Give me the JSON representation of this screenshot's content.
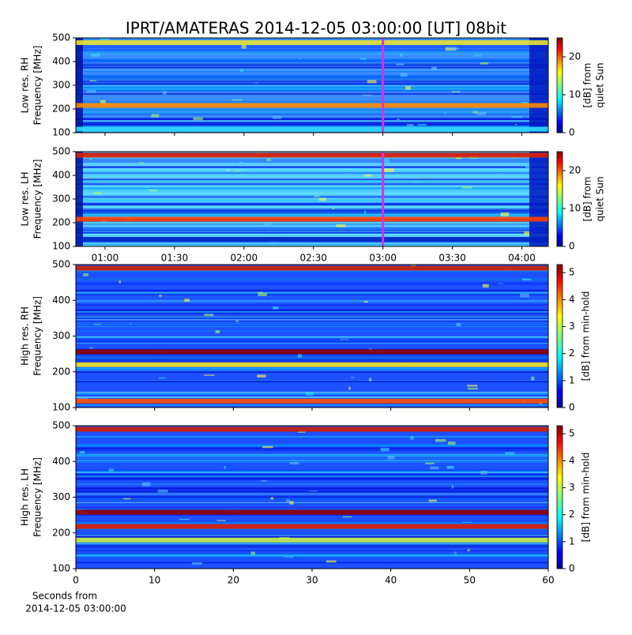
{
  "title": "IPRT/AMATERAS 2014-12-05 03:00:00 [UT]   08bit",
  "chart_data": [
    {
      "type": "spectrogram",
      "ylabel": [
        "Low res. RH",
        "Frequency [MHz]"
      ],
      "xlim": [
        0.79,
        4.19
      ],
      "ylim": [
        100,
        500
      ],
      "yticks": [
        100,
        200,
        300,
        400,
        500
      ],
      "base_color": "#3a8cff",
      "marker_x": 3.0,
      "marker_color": "#e030e0",
      "bands": [
        {
          "freq": 480,
          "color": "#e8e030"
        },
        {
          "freq": 215,
          "color": "#ff8a00"
        },
        {
          "freq": 115,
          "color": "#30e0ff"
        }
      ],
      "colorbar": {
        "label": [
          "[dB] from",
          "quiet Sun"
        ],
        "clim": [
          0,
          25
        ],
        "ticks": [
          0,
          10,
          20
        ]
      }
    },
    {
      "type": "spectrogram",
      "ylabel": [
        "Low res. LH",
        "Frequency [MHz]"
      ],
      "xlim": [
        0.79,
        4.19
      ],
      "ylim": [
        100,
        500
      ],
      "yticks": [
        100,
        200,
        300,
        400,
        500
      ],
      "xticks": [
        {
          "value": 1.0,
          "label": "01:00"
        },
        {
          "value": 1.5,
          "label": "01:30"
        },
        {
          "value": 2.0,
          "label": "02:00"
        },
        {
          "value": 2.5,
          "label": "02:30"
        },
        {
          "value": 3.0,
          "label": "03:00"
        },
        {
          "value": 3.5,
          "label": "03:30"
        },
        {
          "value": 4.0,
          "label": "04:00"
        }
      ],
      "base_color": "#5ad0ff",
      "marker_x": 3.0,
      "marker_color": "#e030e0",
      "bands": [
        {
          "freq": 485,
          "color": "#e02000"
        },
        {
          "freq": 215,
          "color": "#ff4000"
        },
        {
          "freq": 130,
          "color": "#0020c0"
        }
      ],
      "colorbar": {
        "label": [
          "[dB] from",
          "quiet Sun"
        ],
        "clim": [
          0,
          25
        ],
        "ticks": [
          0,
          10,
          20
        ]
      }
    },
    {
      "type": "spectrogram",
      "ylabel": [
        "High res. RH",
        "Frequency [MHz]"
      ],
      "xlim": [
        0,
        60
      ],
      "ylim": [
        100,
        500
      ],
      "yticks": [
        100,
        200,
        300,
        400,
        500
      ],
      "base_color": "#1e50ff",
      "bands": [
        {
          "freq": 490,
          "color": "#d02000"
        },
        {
          "freq": 256,
          "color": "#900000"
        },
        {
          "freq": 220,
          "color": "#f0e020"
        },
        {
          "freq": 118,
          "color": "#ff5000"
        }
      ],
      "colorbar": {
        "label": [
          "[dB] from min-hold"
        ],
        "clim": [
          0,
          5.3
        ],
        "ticks": [
          0,
          1,
          2,
          3,
          4,
          5
        ]
      }
    },
    {
      "type": "spectrogram",
      "ylabel": [
        "High res. LH",
        "Frequency [MHz]"
      ],
      "xlim": [
        0,
        60
      ],
      "ylim": [
        100,
        500
      ],
      "yticks": [
        100,
        200,
        300,
        400,
        500
      ],
      "xticks": [
        0,
        10,
        20,
        30,
        40,
        50,
        60
      ],
      "xlabel": [
        "Seconds from",
        "2014-12-05 03:00:00"
      ],
      "base_color": "#1e50ff",
      "bands": [
        {
          "freq": 490,
          "color": "#d02000"
        },
        {
          "freq": 258,
          "color": "#900000"
        },
        {
          "freq": 218,
          "color": "#e02000"
        },
        {
          "freq": 180,
          "color": "#c8f040"
        }
      ],
      "colorbar": {
        "label": [
          "[dB] from min-hold"
        ],
        "clim": [
          0,
          5.3
        ],
        "ticks": [
          0,
          1,
          2,
          3,
          4,
          5
        ]
      }
    }
  ]
}
